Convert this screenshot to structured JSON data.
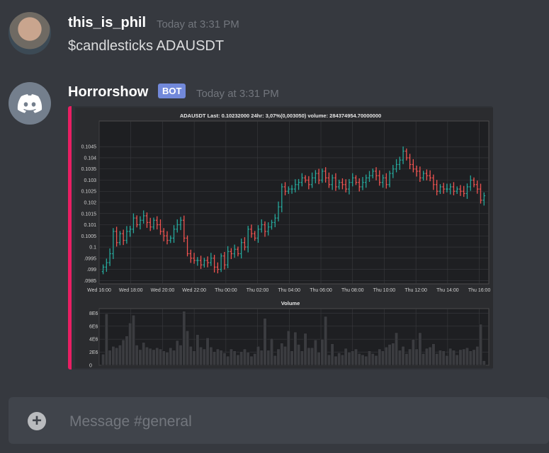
{
  "messages": [
    {
      "username": "this_is_phil",
      "timestamp": "Today at 3:31 PM",
      "content": "$candlesticks ADAUSDT"
    },
    {
      "username": "Horrorshow",
      "bot_tag": "BOT",
      "timestamp": "Today at 3:31 PM"
    }
  ],
  "embed": {
    "accent_color": "#e91e63"
  },
  "chart_data": [
    {
      "type": "candlestick",
      "title": "ADAUSDT Last: 0.10232000 24hr: 3,07%(0,003050) volume: 284374954.70000000",
      "x_tick_labels": [
        "Wed 16:00",
        "Wed 18:00",
        "Wed 20:00",
        "Wed 22:00",
        "Thu 00:00",
        "Thu 02:00",
        "Thu 04:00",
        "Thu 06:00",
        "Thu 08:00",
        "Thu 10:00",
        "Thu 12:00",
        "Thu 14:00",
        "Thu 16:00"
      ],
      "y_tick_labels": [
        ".0985",
        ".099",
        ".0995",
        "0.1",
        "0.1005",
        "0.101",
        "0.1015",
        "0.102",
        "0.1025",
        "0.103",
        "0.1035",
        "0.104",
        "0.1045"
      ],
      "y_ticks": [
        0.0985,
        0.099,
        0.0995,
        0.1,
        0.1005,
        0.101,
        0.1015,
        0.102,
        0.1025,
        0.103,
        0.1035,
        0.104,
        0.1045
      ],
      "ylim": [
        0.09835,
        0.10565
      ],
      "x_hours": [
        16,
        40.6
      ],
      "grid": true,
      "up_color": "#26a69a",
      "down_color": "#ef5350",
      "closes": [
        0.0991,
        0.0993,
        0.0997,
        0.1007,
        0.1002,
        0.1006,
        0.1003,
        0.1007,
        0.1008,
        0.1013,
        0.101,
        0.1012,
        0.1014,
        0.1011,
        0.1009,
        0.1012,
        0.101,
        0.1007,
        0.1005,
        0.1003,
        0.1004,
        0.1008,
        0.101,
        0.1012,
        0.1004,
        0.0997,
        0.0995,
        0.0994,
        0.0994,
        0.0992,
        0.0994,
        0.0993,
        0.0995,
        0.0991,
        0.099,
        0.0996,
        0.0992,
        0.0998,
        0.0997,
        0.0999,
        0.0997,
        0.1002,
        0.1,
        0.1008,
        0.1006,
        0.1004,
        0.1008,
        0.101,
        0.1007,
        0.1009,
        0.1011,
        0.1013,
        0.1018,
        0.1027,
        0.1025,
        0.1026,
        0.1026,
        0.1028,
        0.1029,
        0.1031,
        0.103,
        0.1028,
        0.1031,
        0.1033,
        0.103,
        0.1034,
        0.1031,
        0.1028,
        0.1031,
        0.1027,
        0.1029,
        0.1028,
        0.1026,
        0.1029,
        0.1031,
        0.1029,
        0.1027,
        0.1029,
        0.1031,
        0.1032,
        0.1034,
        0.1032,
        0.1029,
        0.1031,
        0.1028,
        0.1033,
        0.1035,
        0.1037,
        0.1039,
        0.1043,
        0.104,
        0.1037,
        0.1035,
        0.1034,
        0.1031,
        0.1033,
        0.1032,
        0.1031,
        0.1028,
        0.1025,
        0.1027,
        0.1026,
        0.1026,
        0.1027,
        0.1025,
        0.1026,
        0.1025,
        0.1024,
        0.1027,
        0.103,
        0.1028,
        0.1026,
        0.1021,
        0.1023
      ],
      "volume": {
        "title": "Volume",
        "y_tick_labels": [
          "0",
          "2E6",
          "4E6",
          "6E6",
          "8E6"
        ],
        "y_ticks": [
          0,
          2000000,
          4000000,
          6000000,
          8000000
        ],
        "ylim": [
          0,
          8700000
        ],
        "values": [
          1700000,
          7900000,
          2300000,
          2900000,
          2700000,
          3100000,
          3900000,
          4500000,
          6500000,
          7700000,
          3100000,
          2400000,
          3500000,
          2800000,
          2600000,
          2400000,
          2700000,
          2500000,
          2200000,
          2000000,
          2700000,
          2300000,
          3800000,
          3100000,
          8300000,
          5300000,
          2900000,
          2200000,
          4700000,
          2800000,
          2500000,
          4200000,
          2800000,
          2100000,
          2500000,
          2300000,
          1900000,
          1400000,
          2500000,
          2200000,
          1600000,
          2100000,
          2500000,
          2000000,
          1400000,
          1800000,
          2900000,
          2300000,
          7200000,
          2300000,
          4100000,
          1500000,
          2500000,
          3400000,
          2900000,
          5300000,
          2200000,
          5100000,
          3200000,
          2200000,
          4900000,
          2700000,
          2700000,
          3900000,
          2000000,
          4000000,
          7500000,
          1600000,
          3300000,
          1400000,
          1900000,
          1600000,
          2600000,
          2000000,
          2200000,
          2500000,
          1800000,
          1600000,
          1400000,
          2200000,
          1800000,
          1500000,
          2500000,
          2200000,
          2800000,
          3200000,
          3400000,
          5000000,
          2300000,
          2900000,
          1800000,
          2500000,
          4000000,
          2500000,
          5000000,
          1800000,
          2600000,
          2800000,
          3300000,
          1800000,
          2300000,
          2200000,
          1500000,
          2600000,
          2300000,
          1600000,
          2400000,
          2500000,
          2700000,
          2200000,
          2400000,
          2900000,
          6300000,
          700000
        ]
      }
    }
  ],
  "composer": {
    "placeholder": "Message #general",
    "plus_glyph": "+"
  }
}
